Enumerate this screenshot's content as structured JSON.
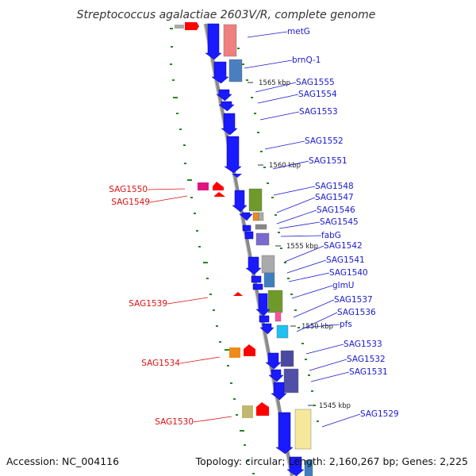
{
  "title": "Streptococcus agalactiae 2603V/R, complete genome",
  "footer": {
    "accession": "Accession: NC_004116",
    "summary": "Topology: circular; Length: 2,160,267 bp; Genes: 2,225"
  },
  "colors": {
    "backbone": "#888888",
    "forward_cds": "#1a1aff",
    "reverse_cds": "#ff0000",
    "label_forward": "#1a1acc",
    "label_reverse": "#dd1111",
    "gc_tick": "#228822"
  },
  "tick_labels": [
    "1565 kbp",
    "1560 kbp",
    "1555 kbp",
    "1550 kbp",
    "1545 kbp"
  ],
  "forward_genes": [
    {
      "label": "metG"
    },
    {
      "label": "brnQ-1"
    },
    {
      "label": "SAG1555"
    },
    {
      "label": "SAG1554"
    },
    {
      "label": "SAG1553"
    },
    {
      "label": "SAG1552"
    },
    {
      "label": "SAG1551"
    },
    {
      "label": "SAG1548"
    },
    {
      "label": "SAG1547"
    },
    {
      "label": "SAG1546"
    },
    {
      "label": "SAG1545"
    },
    {
      "label": "fabG"
    },
    {
      "label": "SAG1542"
    },
    {
      "label": "SAG1541"
    },
    {
      "label": "SAG1540"
    },
    {
      "label": "glmU"
    },
    {
      "label": "SAG1537"
    },
    {
      "label": "SAG1536"
    },
    {
      "label": "pfs"
    },
    {
      "label": "SAG1533"
    },
    {
      "label": "SAG1532"
    },
    {
      "label": "SAG1531"
    },
    {
      "label": "SAG1529"
    }
  ],
  "reverse_genes": [
    {
      "label": "SAG1550"
    },
    {
      "label": "SAG1549"
    },
    {
      "label": "SAG1539"
    },
    {
      "label": "SAG1534"
    },
    {
      "label": "SAG1530"
    }
  ]
}
